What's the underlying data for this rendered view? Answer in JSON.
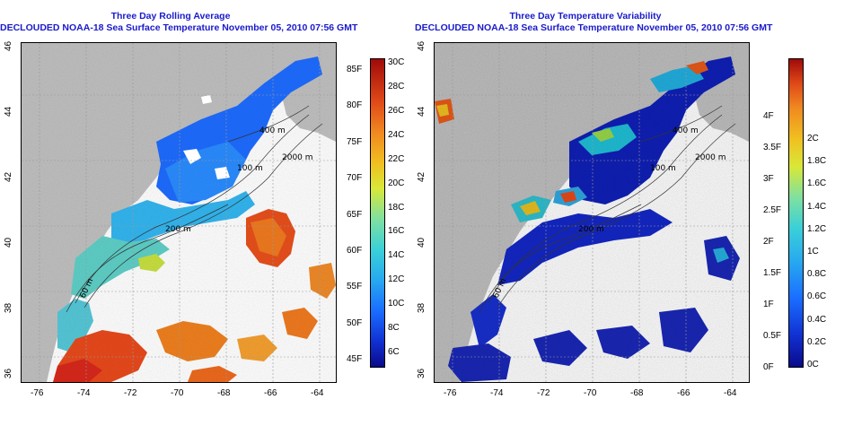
{
  "left_panel": {
    "title_line1": "Three Day Rolling Average",
    "title_line2": "DECLOUDED NOAA-18 Sea Surface Temperature November 05, 2010 07:56 GMT",
    "lat_ticks": [
      "46",
      "44",
      "42",
      "40",
      "38",
      "36"
    ],
    "lon_ticks": [
      "-76",
      "-74",
      "-72",
      "-70",
      "-68",
      "-66",
      "-64"
    ],
    "contours": [
      "400 m",
      "2000 m",
      "100 m",
      "200 m",
      "60 m",
      "200 m",
      "60 m"
    ],
    "colorbar": {
      "fahrenheit": [
        "85F",
        "80F",
        "75F",
        "70F",
        "65F",
        "60F",
        "55F",
        "50F",
        "45F"
      ],
      "celsius": [
        "30C",
        "28C",
        "26C",
        "24C",
        "22C",
        "20C",
        "18C",
        "16C",
        "14C",
        "12C",
        "10C",
        "8C",
        "6C"
      ]
    }
  },
  "right_panel": {
    "title_line1": "Three Day Temperature Variability",
    "title_line2": "DECLOUDED NOAA-18 Sea Surface Temperature November 05, 2010 07:56 GMT",
    "lat_ticks": [
      "46",
      "44",
      "42",
      "40",
      "38",
      "36"
    ],
    "lon_ticks": [
      "-76",
      "-74",
      "-72",
      "-70",
      "-68",
      "-66",
      "-64"
    ],
    "contours": [
      "400 m",
      "2000 m",
      "100 m",
      "200 m",
      "60 m"
    ],
    "colorbar": {
      "fahrenheit": [
        "4F",
        "3.5F",
        "3F",
        "2.5F",
        "2F",
        "1.5F",
        "1F",
        "0.5F",
        "0F"
      ],
      "celsius": [
        "2C",
        "1.8C",
        "1.6C",
        "1.4C",
        "1.2C",
        "1C",
        "0.8C",
        "0.6C",
        "0.4C",
        "0.2C",
        "0C"
      ]
    }
  },
  "colors": {
    "title": "#1a1acc",
    "land": "#c0c0c0",
    "no_data": "#ffffff"
  }
}
